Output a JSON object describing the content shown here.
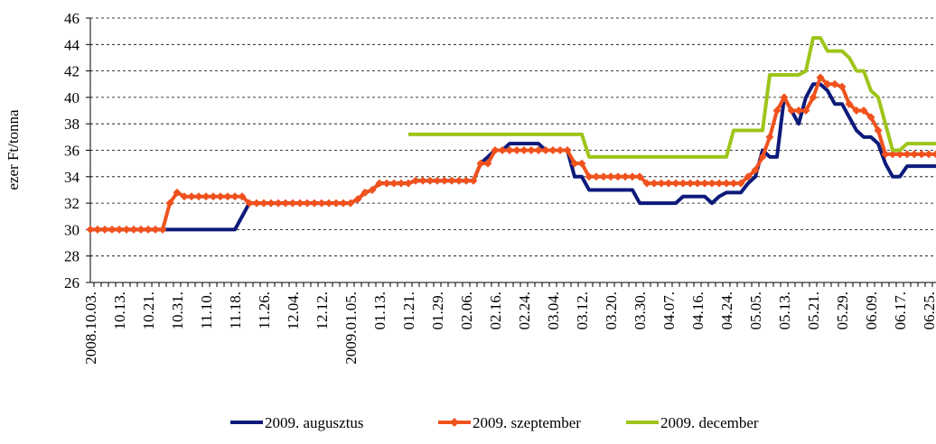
{
  "chart_data": {
    "type": "line",
    "y_label": "ezer Ft/tonna",
    "categories": [
      "2008.10.03.",
      null,
      null,
      null,
      "10.13.",
      null,
      null,
      null,
      "10.21.",
      null,
      null,
      null,
      "10.31.",
      null,
      null,
      null,
      "11.10.",
      null,
      null,
      null,
      "11.18.",
      null,
      null,
      null,
      "11.26.",
      null,
      null,
      null,
      "12.04.",
      null,
      null,
      null,
      "12.12.",
      null,
      null,
      null,
      "2009.01.05.",
      null,
      null,
      null,
      "01.13.",
      null,
      null,
      null,
      "01.21.",
      null,
      null,
      null,
      "01.29.",
      null,
      null,
      null,
      "02.06.",
      null,
      null,
      null,
      "02.16.",
      null,
      null,
      null,
      "02.24.",
      null,
      null,
      null,
      "03.04.",
      null,
      null,
      null,
      "03.12.",
      null,
      null,
      null,
      "03.20.",
      null,
      null,
      null,
      "03.30.",
      null,
      null,
      null,
      "04.07.",
      null,
      null,
      null,
      "04.16.",
      null,
      null,
      null,
      "04.24.",
      null,
      null,
      null,
      "05.05.",
      null,
      null,
      null,
      "05.13.",
      null,
      null,
      null,
      "05.21.",
      null,
      null,
      null,
      "05.29.",
      null,
      null,
      null,
      "06.09.",
      null,
      null,
      null,
      "06.17.",
      null,
      null,
      null,
      "06.25.",
      null
    ],
    "series": [
      {
        "name": "2009. augusztus",
        "color": "#0d1a7a",
        "marker": false,
        "values": [
          30,
          30,
          30,
          30,
          30,
          30,
          30,
          30,
          30,
          30,
          30,
          30,
          30,
          30,
          30,
          30,
          30,
          30,
          30,
          30,
          30,
          31,
          32,
          32,
          32,
          32,
          32,
          32,
          32,
          32,
          32,
          32,
          32,
          32,
          32,
          32,
          32,
          32.3,
          32.8,
          33,
          33.5,
          33.5,
          33.5,
          33.5,
          33.5,
          33.7,
          33.7,
          33.7,
          33.7,
          33.7,
          33.7,
          33.7,
          33.7,
          33.7,
          35,
          35.5,
          36,
          36,
          36.5,
          36.5,
          36.5,
          36.5,
          36.5,
          36,
          36,
          36,
          36,
          34,
          34,
          33,
          33,
          33,
          33,
          33,
          33,
          33,
          32,
          32,
          32,
          32,
          32,
          32,
          32.5,
          32.5,
          32.5,
          32.5,
          32,
          32.5,
          32.8,
          32.8,
          32.8,
          33.5,
          34,
          36,
          35.5,
          35.5,
          40,
          39,
          38,
          40,
          41,
          41,
          40.5,
          39.5,
          39.5,
          38.5,
          37.5,
          37,
          37,
          36.5,
          35,
          34,
          34,
          34.8,
          34.8,
          34.8,
          34.8,
          34.8
        ]
      },
      {
        "name": "2009. szeptember",
        "color": "#f0521e",
        "marker": true,
        "values": [
          30,
          30,
          30,
          30,
          30,
          30,
          30,
          30,
          30,
          30,
          30,
          32,
          32.8,
          32.5,
          32.5,
          32.5,
          32.5,
          32.5,
          32.5,
          32.5,
          32.5,
          32.5,
          32,
          32,
          32,
          32,
          32,
          32,
          32,
          32,
          32,
          32,
          32,
          32,
          32,
          32,
          32,
          32.3,
          32.8,
          33,
          33.5,
          33.5,
          33.5,
          33.5,
          33.5,
          33.7,
          33.7,
          33.7,
          33.7,
          33.7,
          33.7,
          33.7,
          33.7,
          33.7,
          35,
          35,
          36,
          36,
          36,
          36,
          36,
          36,
          36,
          36,
          36,
          36,
          36,
          35,
          35,
          34,
          34,
          34,
          34,
          34,
          34,
          34,
          34,
          33.5,
          33.5,
          33.5,
          33.5,
          33.5,
          33.5,
          33.5,
          33.5,
          33.5,
          33.5,
          33.5,
          33.5,
          33.5,
          33.5,
          34,
          34.5,
          35.5,
          37,
          39,
          40,
          39,
          39,
          39,
          40,
          41.5,
          41,
          41,
          40.8,
          39.5,
          39,
          39,
          38.5,
          37.5,
          35.7,
          35.7,
          35.7,
          35.7,
          35.7,
          35.7,
          35.7,
          35.7
        ]
      },
      {
        "name": "2009. december",
        "color": "#9dc51a",
        "marker": false,
        "values": [
          null,
          null,
          null,
          null,
          null,
          null,
          null,
          null,
          null,
          null,
          null,
          null,
          null,
          null,
          null,
          null,
          null,
          null,
          null,
          null,
          null,
          null,
          null,
          null,
          null,
          null,
          null,
          null,
          null,
          null,
          null,
          null,
          null,
          null,
          null,
          null,
          null,
          null,
          null,
          null,
          null,
          null,
          null,
          null,
          37.2,
          37.2,
          37.2,
          37.2,
          37.2,
          37.2,
          37.2,
          37.2,
          37.2,
          37.2,
          37.2,
          37.2,
          37.2,
          37.2,
          37.2,
          37.2,
          37.2,
          37.2,
          37.2,
          37.2,
          37.2,
          37.2,
          37.2,
          37.2,
          37.2,
          35.5,
          35.5,
          35.5,
          35.5,
          35.5,
          35.5,
          35.5,
          35.5,
          35.5,
          35.5,
          35.5,
          35.5,
          35.5,
          35.5,
          35.5,
          35.5,
          35.5,
          35.5,
          35.5,
          35.5,
          37.5,
          37.5,
          37.5,
          37.5,
          37.5,
          41.7,
          41.7,
          41.7,
          41.7,
          41.7,
          42,
          44.5,
          44.5,
          43.5,
          43.5,
          43.5,
          43,
          42,
          42,
          40.5,
          40,
          38,
          36,
          36,
          36.5,
          36.5,
          36.5,
          36.5,
          36.5
        ]
      }
    ],
    "ylim": [
      26,
      46
    ],
    "yticks": [
      26,
      28,
      30,
      32,
      34,
      36,
      38,
      40,
      42,
      44,
      46
    ],
    "grid": true,
    "legend": "bottom"
  }
}
